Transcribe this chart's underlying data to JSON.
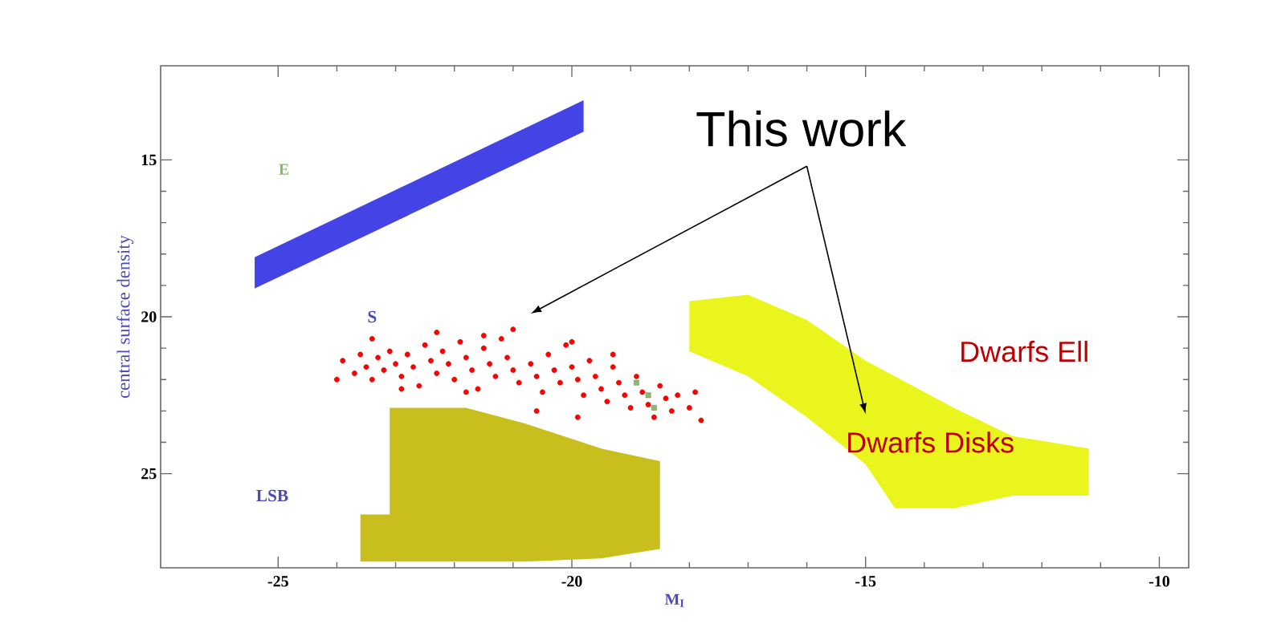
{
  "chart_data": {
    "type": "scatter",
    "xlabel": "M$_{I}$",
    "ylabel": "central surface density",
    "xlim": [
      -27,
      -9.5
    ],
    "ylim": [
      28,
      12
    ],
    "xticks": [
      -25,
      -20,
      -15,
      -10
    ],
    "yticks": [
      15,
      20,
      25
    ],
    "grid": false,
    "annotations": [
      "E",
      "S",
      "LSB",
      "Dwarfs Ell",
      "Dwarfs Disks",
      "This work"
    ],
    "series": [
      {
        "type": "area",
        "color": "#4444e6",
        "x": [
          -25.4,
          -19.8,
          -19.8,
          -25.4
        ],
        "values": [
          18.1,
          13.1,
          14.1,
          19.1
        ]
      },
      {
        "type": "area",
        "color": "#c8be1e",
        "x": [
          -23.6,
          -23.1,
          -23.1,
          -21.8,
          -20.8,
          -19.5,
          -18.5,
          -18.5,
          -19.5,
          -20.8,
          -21.8,
          -23.1,
          -23.6
        ],
        "values": [
          26.3,
          26.3,
          22.9,
          22.9,
          23.4,
          24.2,
          24.6,
          27.4,
          27.7,
          27.8,
          27.8,
          27.8,
          27.8
        ]
      },
      {
        "type": "area",
        "color": "#eaf51e",
        "x": [
          -18.0,
          -17.0,
          -16.0,
          -15.0,
          -14.5,
          -13.5,
          -12.5,
          -11.2,
          -11.2,
          -12.5,
          -13.5,
          -14.5,
          -15.0,
          -16.0,
          -17.0,
          -18.0
        ],
        "values": [
          19.5,
          19.3,
          20.1,
          21.4,
          21.9,
          22.9,
          23.8,
          24.2,
          25.7,
          25.7,
          26.1,
          26.1,
          24.7,
          23.2,
          21.9,
          21.1
        ]
      },
      {
        "color": "#ff0000",
        "marker": "circle",
        "x": [
          -23.9,
          -23.7,
          -23.6,
          -23.5,
          -23.4,
          -23.3,
          -23.2,
          -23.1,
          -23.0,
          -22.9,
          -22.8,
          -22.7,
          -22.6,
          -22.5,
          -22.4,
          -22.3,
          -22.2,
          -22.1,
          -22.0,
          -21.9,
          -21.8,
          -21.7,
          -21.6,
          -21.5,
          -21.4,
          -21.3,
          -21.2,
          -21.1,
          -21.0,
          -20.9,
          -21.0,
          -20.7,
          -20.6,
          -20.5,
          -20.4,
          -20.3,
          -20.2,
          -20.1,
          -20.0,
          -19.9,
          -19.8,
          -19.7,
          -19.6,
          -19.5,
          -19.4,
          -19.3,
          -19.2,
          -19.1,
          -19.0,
          -18.9,
          -18.8,
          -18.7,
          -18.6,
          -18.5,
          -18.4,
          -18.3,
          -18.2,
          -18.0,
          -17.8,
          -17.9,
          -22.9,
          -21.8,
          -20.6,
          -19.9,
          -23.4,
          -22.3,
          -21.5,
          -20.0,
          -19.3,
          -24.0
        ],
        "values": [
          21.4,
          21.8,
          21.2,
          21.6,
          22.0,
          21.3,
          21.7,
          21.1,
          21.5,
          21.9,
          21.2,
          21.6,
          22.2,
          20.9,
          21.4,
          21.8,
          21.1,
          21.5,
          22.0,
          20.8,
          21.3,
          21.7,
          22.3,
          21.0,
          21.5,
          21.9,
          20.7,
          21.3,
          21.7,
          22.1,
          20.4,
          21.5,
          21.9,
          22.4,
          21.2,
          21.7,
          22.1,
          20.9,
          21.6,
          22.0,
          22.5,
          21.4,
          21.9,
          22.3,
          22.7,
          21.6,
          22.1,
          22.5,
          22.9,
          21.9,
          22.4,
          22.8,
          23.2,
          22.2,
          22.6,
          23.0,
          22.5,
          22.9,
          23.3,
          22.4,
          22.3,
          22.4,
          23.0,
          23.2,
          20.7,
          20.5,
          20.6,
          20.8,
          21.2,
          22.0
        ]
      },
      {
        "color": "#8cb870",
        "marker": "square",
        "x": [
          -18.9,
          -18.7,
          -18.6
        ],
        "values": [
          22.1,
          22.5,
          22.9
        ]
      }
    ]
  }
}
